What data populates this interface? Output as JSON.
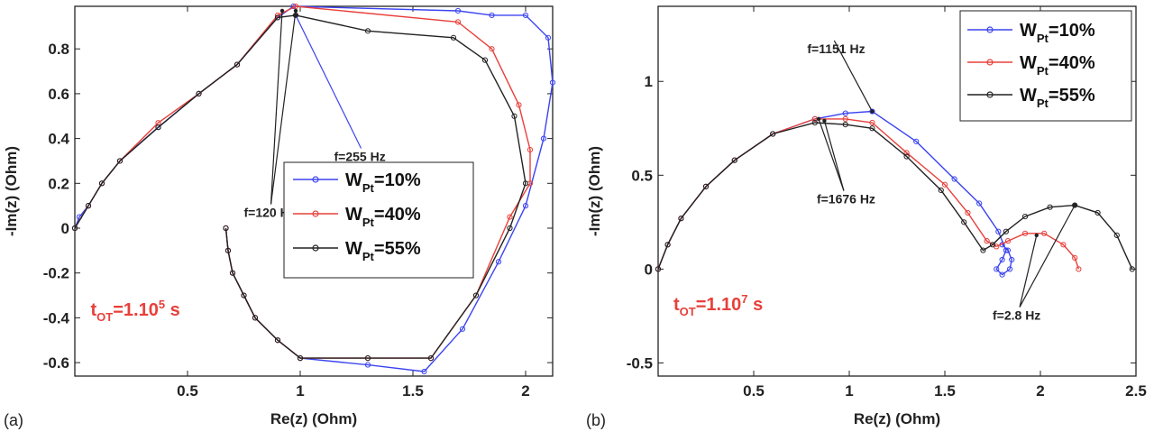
{
  "chart_data": [
    {
      "type": "line",
      "panel_label": "(a)",
      "xlabel": "Re(z) (Ohm)",
      "ylabel": "-Im(z) (Ohm)",
      "xlim": [
        0.0,
        2.12
      ],
      "ylim": [
        -0.66,
        0.99
      ],
      "xticks": [
        0.5,
        1,
        1.5,
        2
      ],
      "xtick_labels": [
        "0.5",
        "1",
        "1.5",
        "2"
      ],
      "yticks": [
        -0.6,
        -0.4,
        -0.2,
        0,
        0.2,
        0.4,
        0.6,
        0.8
      ],
      "ytick_labels": [
        "-0.6",
        "-0.4",
        "-0.2",
        "0",
        "0.2",
        "0.4",
        "0.6",
        "0.8"
      ],
      "legend_position": "right",
      "legend": [
        {
          "prefix": "W",
          "sub": "Pt",
          "suffix": "=10%"
        },
        {
          "prefix": "W",
          "sub": "Pt",
          "suffix": "=40%"
        },
        {
          "prefix": "W",
          "sub": "Pt",
          "suffix": "=55%"
        }
      ],
      "series": [
        {
          "color": "#3b44f0",
          "x": [
            0.67,
            0.68,
            0.7,
            0.75,
            0.8,
            0.9,
            1.0,
            1.3,
            1.55,
            1.72,
            1.88,
            2.0,
            2.08,
            2.12,
            2.1,
            2.0,
            1.85,
            1.7,
            0.97,
            0.9,
            0.72,
            0.55,
            0.37,
            0.2,
            0.12,
            0.06,
            0.02,
            0.0
          ],
          "y": [
            0.0,
            -0.1,
            -0.2,
            -0.3,
            -0.4,
            -0.5,
            -0.58,
            -0.61,
            -0.64,
            -0.45,
            -0.15,
            0.1,
            0.4,
            0.65,
            0.85,
            0.95,
            0.95,
            0.97,
            0.99,
            0.94,
            0.73,
            0.6,
            0.45,
            0.3,
            0.2,
            0.1,
            0.05,
            0.0
          ]
        },
        {
          "color": "#e8403a",
          "x": [
            0.67,
            0.68,
            0.7,
            0.75,
            0.8,
            0.9,
            1.0,
            1.3,
            1.58,
            1.78,
            1.93,
            2.02,
            2.02,
            1.97,
            1.85,
            1.7,
            0.98,
            0.9,
            0.72,
            0.55,
            0.37,
            0.2,
            0.12,
            0.06,
            0.0
          ],
          "y": [
            0.0,
            -0.1,
            -0.2,
            -0.3,
            -0.4,
            -0.5,
            -0.58,
            -0.58,
            -0.58,
            -0.3,
            0.05,
            0.2,
            0.35,
            0.55,
            0.8,
            0.92,
            0.99,
            0.95,
            0.73,
            0.6,
            0.47,
            0.3,
            0.2,
            0.1,
            0.0
          ]
        },
        {
          "color": "#222222",
          "x": [
            0.67,
            0.68,
            0.7,
            0.75,
            0.8,
            0.9,
            1.0,
            1.3,
            1.58,
            1.78,
            1.93,
            2.0,
            1.95,
            1.82,
            1.68,
            1.3,
            0.98,
            0.9,
            0.72,
            0.55,
            0.37,
            0.2,
            0.12,
            0.06,
            0.0
          ],
          "y": [
            0.0,
            -0.1,
            -0.2,
            -0.3,
            -0.4,
            -0.5,
            -0.58,
            -0.58,
            -0.58,
            -0.3,
            0.0,
            0.2,
            0.5,
            0.75,
            0.85,
            0.88,
            0.95,
            0.94,
            0.73,
            0.6,
            0.45,
            0.3,
            0.2,
            0.1,
            0.0
          ]
        }
      ],
      "annotations": [
        {
          "text": "f=120 Hz",
          "tx": 0.75,
          "ty": 0.05,
          "arrows": [
            [
              0.92,
              0.97
            ],
            [
              0.98,
              0.97
            ]
          ]
        },
        {
          "text": "f=255 Hz",
          "tx": 1.15,
          "ty": 0.3,
          "arrows": [
            [
              0.98,
              0.95
            ]
          ]
        }
      ],
      "condition": {
        "prefix": "t",
        "sub": "OT",
        "main": "=1.10",
        "sup": "5",
        "suffix": " s",
        "x": 0.07,
        "y": -0.39
      }
    },
    {
      "type": "line",
      "panel_label": "(b)",
      "xlabel": "Re(z) (Ohm)",
      "ylabel": "-Im(z) (Ohm)",
      "xlim": [
        0.0,
        2.5
      ],
      "ylim": [
        -0.57,
        1.4
      ],
      "xticks": [
        0.5,
        1,
        1.5,
        2,
        2.5
      ],
      "xtick_labels": [
        "0.5",
        "1",
        "1.5",
        "2",
        "2.5"
      ],
      "yticks": [
        -0.5,
        0,
        0.5,
        1
      ],
      "ytick_labels": [
        "-0.5",
        "0",
        "0.5",
        "1"
      ],
      "legend_position": "top-right",
      "legend": [
        {
          "prefix": "W",
          "sub": "Pt",
          "suffix": "=10%"
        },
        {
          "prefix": "W",
          "sub": "Pt",
          "suffix": "=40%"
        },
        {
          "prefix": "W",
          "sub": "Pt",
          "suffix": "=55%"
        }
      ],
      "series": [
        {
          "color": "#3b44f0",
          "x": [
            0.0,
            0.05,
            0.12,
            0.25,
            0.4,
            0.6,
            0.82,
            0.98,
            1.12,
            1.35,
            1.55,
            1.68,
            1.78,
            1.82,
            1.8,
            1.77,
            1.8,
            1.84,
            1.85,
            1.83,
            1.8
          ],
          "y": [
            0.0,
            0.13,
            0.27,
            0.44,
            0.58,
            0.72,
            0.8,
            0.83,
            0.84,
            0.68,
            0.48,
            0.35,
            0.2,
            0.1,
            0.05,
            0.0,
            -0.03,
            0.0,
            0.05,
            0.1,
            0.13
          ]
        },
        {
          "color": "#e8403a",
          "x": [
            0.0,
            0.05,
            0.12,
            0.25,
            0.4,
            0.6,
            0.82,
            0.98,
            1.12,
            1.3,
            1.5,
            1.62,
            1.72,
            1.77,
            1.83,
            1.92,
            2.02,
            2.12,
            2.18,
            2.2
          ],
          "y": [
            0.0,
            0.13,
            0.27,
            0.44,
            0.58,
            0.72,
            0.8,
            0.8,
            0.78,
            0.62,
            0.45,
            0.3,
            0.15,
            0.12,
            0.15,
            0.19,
            0.19,
            0.13,
            0.06,
            0.0
          ],
          "markers_only_after": 14
        },
        {
          "color": "#222222",
          "x": [
            0.0,
            0.05,
            0.12,
            0.25,
            0.4,
            0.6,
            0.82,
            0.98,
            1.12,
            1.3,
            1.48,
            1.6,
            1.7,
            1.75,
            1.82,
            1.92,
            2.05,
            2.18,
            2.3,
            2.4,
            2.48
          ],
          "y": [
            0.0,
            0.13,
            0.27,
            0.44,
            0.58,
            0.72,
            0.78,
            0.77,
            0.75,
            0.6,
            0.42,
            0.25,
            0.1,
            0.13,
            0.2,
            0.28,
            0.33,
            0.34,
            0.3,
            0.18,
            0.0
          ]
        }
      ],
      "annotations": [
        {
          "text": "f=1151 Hz",
          "tx": 0.78,
          "ty": 1.15,
          "arrows": [
            [
              1.12,
              0.84
            ]
          ]
        },
        {
          "text": "f=1676 Hz",
          "tx": 0.83,
          "ty": 0.35,
          "arrows": [
            [
              0.87,
              0.79
            ],
            [
              0.84,
              0.8
            ]
          ]
        },
        {
          "text": "f=2.8 Hz",
          "tx": 1.75,
          "ty": -0.27,
          "arrows": [
            [
              1.98,
              0.18
            ],
            [
              2.18,
              0.34
            ]
          ]
        }
      ],
      "condition": {
        "prefix": "t",
        "sub": "OT",
        "main": "=1.10",
        "sup": "7",
        "suffix": " s",
        "x": 0.08,
        "y": -0.22
      }
    }
  ]
}
